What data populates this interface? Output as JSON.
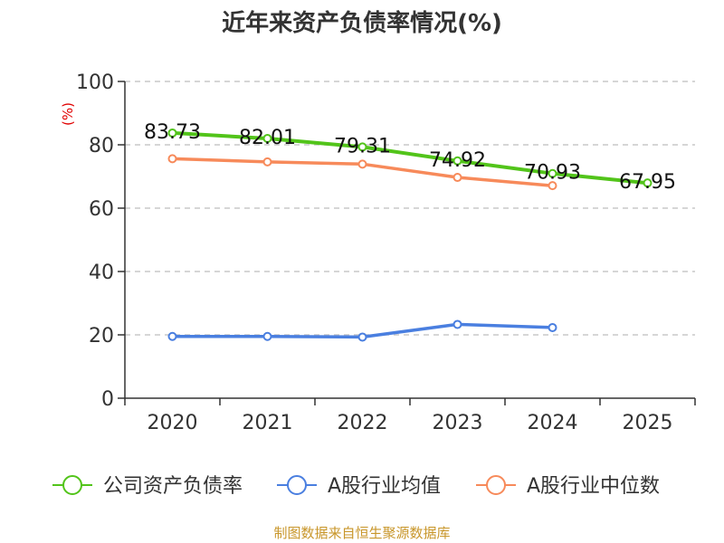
{
  "chart_data": {
    "type": "line",
    "title": "近年来资产负债率情况(%)",
    "ylabel": "(%)",
    "xlabel": "",
    "categories": [
      "2020",
      "2021",
      "2022",
      "2023",
      "2024",
      "2025"
    ],
    "ylim": [
      0,
      100
    ],
    "yticks": [
      0,
      20,
      40,
      60,
      80,
      100
    ],
    "grid": true,
    "legend_position": "bottom",
    "series": [
      {
        "name": "公司资产负债率",
        "color": "#52c41a",
        "values": [
          83.73,
          82.01,
          79.31,
          74.92,
          70.93,
          67.95
        ],
        "labels": [
          "83.73",
          "82.01",
          "79.31",
          "74.92",
          "70.93",
          "67.95"
        ]
      },
      {
        "name": "A股行业均值",
        "color": "#4a7fe0",
        "values": [
          19.5,
          19.5,
          19.3,
          23.3,
          22.3,
          null
        ]
      },
      {
        "name": "A股行业中位数",
        "color": "#f78a5a",
        "values": [
          75.6,
          74.6,
          73.9,
          69.7,
          67.1,
          null
        ]
      }
    ],
    "source": "制图数据来自恒生聚源数据库"
  }
}
